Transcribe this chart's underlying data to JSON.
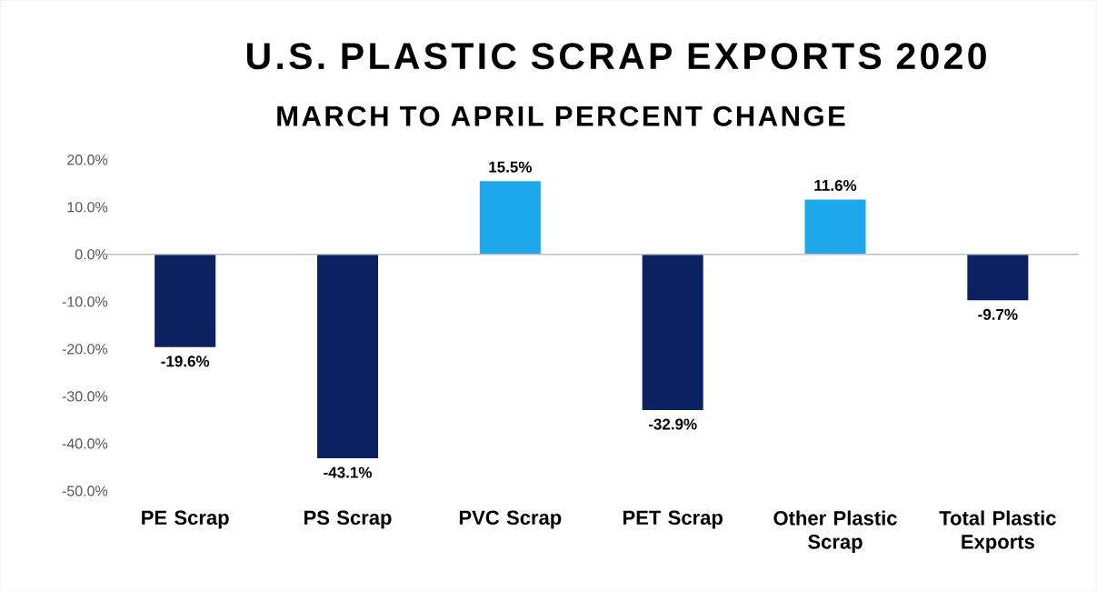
{
  "chart_data": {
    "type": "bar",
    "title": "U.S. PLASTIC SCRAP EXPORTS 2020",
    "subtitle": "MARCH TO APRIL PERCENT CHANGE",
    "categories": [
      "PE Scrap",
      "PS Scrap",
      "PVC Scrap",
      "PET Scrap",
      "Other Plastic Scrap",
      "Total Plastic Exports"
    ],
    "values": [
      -19.6,
      -43.1,
      15.5,
      -32.9,
      11.6,
      -9.7
    ],
    "colors": [
      "#0b2160",
      "#0b2160",
      "#1ea7ea",
      "#0b2160",
      "#1ea7ea",
      "#0b2160"
    ],
    "value_labels": [
      "-19.6%",
      "-43.1%",
      "15.5%",
      "-32.9%",
      "11.6%",
      "-9.7%"
    ],
    "ylim": [
      -50,
      20
    ],
    "yticks": [
      {
        "value": -50,
        "label": "-50.0%"
      },
      {
        "value": -40,
        "label": "-40.0%"
      },
      {
        "value": -30,
        "label": "-30.0%"
      },
      {
        "value": -20,
        "label": "-20.0%"
      },
      {
        "value": -10,
        "label": "-10.0%"
      },
      {
        "value": 0,
        "label": "0.0%"
      },
      {
        "value": 10,
        "label": "10.0%"
      },
      {
        "value": 20,
        "label": "20.0%"
      }
    ]
  }
}
